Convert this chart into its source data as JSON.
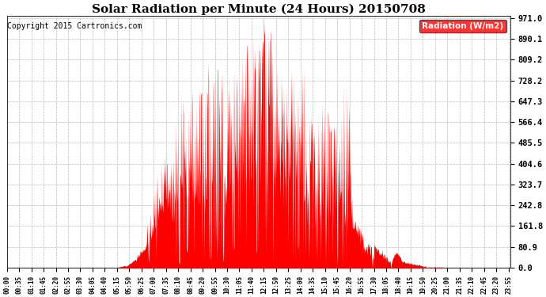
{
  "title": "Solar Radiation per Minute (24 Hours) 20150708",
  "copyright_text": "Copyright 2015 Cartronics.com",
  "ylabel": "Radiation (W/m2)",
  "yticks": [
    0.0,
    80.9,
    161.8,
    242.8,
    323.7,
    404.6,
    485.5,
    566.4,
    647.3,
    728.2,
    809.2,
    890.1,
    971.0
  ],
  "ymax": 971.0,
  "ymin": 0.0,
  "fill_color": "#FF0000",
  "dashed_line_color": "#FF0000",
  "grid_color": "#BBBBBB",
  "bg_color": "#FFFFFF",
  "legend_bg": "#FF0000",
  "legend_text_color": "#FFFFFF",
  "title_fontsize": 11,
  "copyright_fontsize": 7,
  "total_minutes": 1440,
  "sunrise_minute": 315,
  "sunset_minute": 1245,
  "peak_minute": 735,
  "peak_value": 971.0
}
